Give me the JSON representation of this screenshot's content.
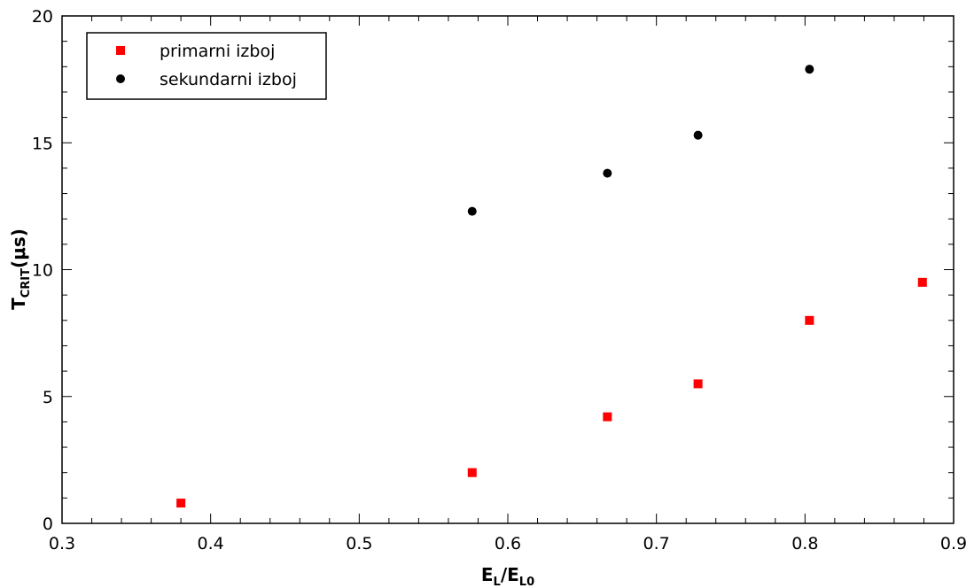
{
  "chart_data": {
    "type": "scatter",
    "xlabel": {
      "main": "E",
      "sub": "L",
      "sep": "/",
      "main2": "E",
      "sub2": "L0"
    },
    "ylabel": {
      "main": "T",
      "sub": "CRIT",
      "rest": "(μs)"
    },
    "xlim": [
      0.3,
      0.9
    ],
    "ylim": [
      0,
      20
    ],
    "x_ticks": [
      "0.3",
      "0.4",
      "0.5",
      "0.6",
      "0.7",
      "0.8",
      "0.9"
    ],
    "y_ticks": [
      "0",
      "5",
      "10",
      "15",
      "20"
    ],
    "legend_position": "top-left",
    "grid": false,
    "series": [
      {
        "name": "primarni izboj",
        "marker": "square",
        "color": "#ff0000",
        "x": [
          0.38,
          0.576,
          0.667,
          0.728,
          0.803,
          0.879
        ],
        "y": [
          0.8,
          2.0,
          4.2,
          5.5,
          8.0,
          9.5
        ]
      },
      {
        "name": "sekundarni izboj",
        "marker": "circle",
        "color": "#000000",
        "x": [
          0.576,
          0.667,
          0.728,
          0.803
        ],
        "y": [
          12.3,
          13.8,
          15.3,
          17.9
        ]
      }
    ]
  }
}
